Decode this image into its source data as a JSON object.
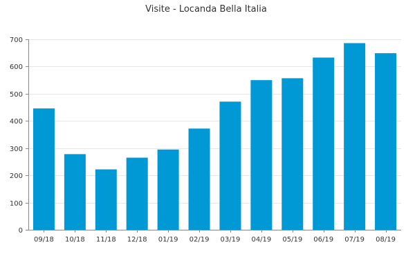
{
  "chart_data": {
    "type": "bar",
    "title": "Visite - Locanda Bella Italia",
    "xlabel": "",
    "ylabel": "",
    "categories": [
      "09/18",
      "10/18",
      "11/18",
      "12/18",
      "01/19",
      "02/19",
      "03/19",
      "04/19",
      "05/19",
      "06/19",
      "07/19",
      "08/19"
    ],
    "values": [
      446,
      278,
      222,
      265,
      295,
      372,
      471,
      550,
      557,
      633,
      686,
      649
    ],
    "ylim": [
      0,
      700
    ],
    "yticks": [
      0,
      100,
      200,
      300,
      400,
      500,
      600,
      700
    ],
    "grid": true,
    "legend": "none",
    "bar_color": "#0099d6"
  }
}
